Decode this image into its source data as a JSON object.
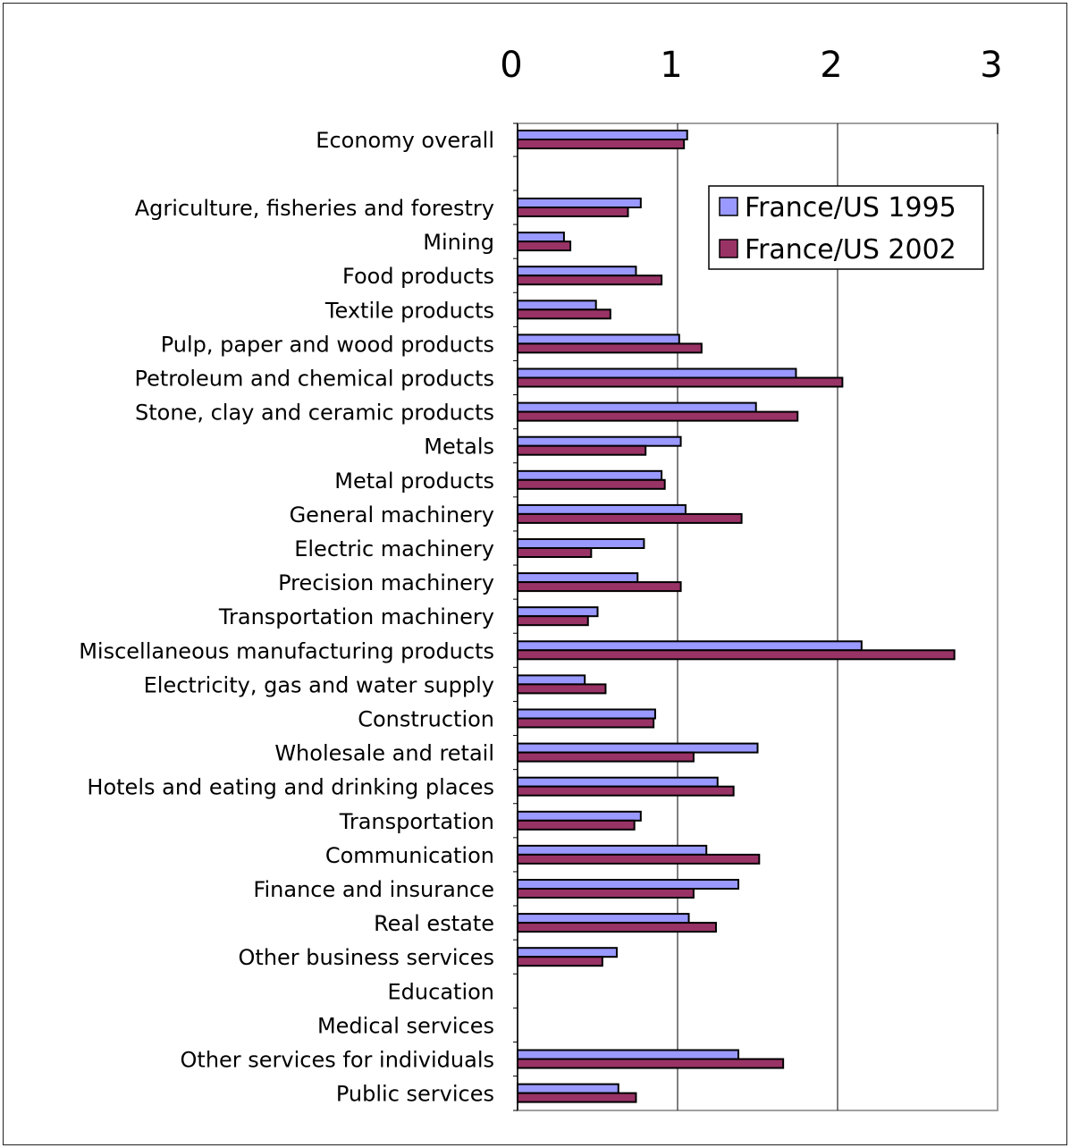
{
  "chart_data": {
    "type": "bar",
    "orientation": "horizontal",
    "categories": [
      "Economy overall",
      "Agriculture, fisheries and forestry",
      "Mining",
      "Food products",
      "Textile products",
      "Pulp, paper and wood products",
      "Petroleum and chemical products",
      "Stone, clay and ceramic products",
      "Metals",
      "Metal products",
      "General machinery",
      "Electric machinery",
      "Precision machinery",
      "Transportation machinery",
      "Miscellaneous manufacturing products",
      "Electricity, gas and water supply",
      "Construction",
      "Wholesale and retail",
      "Hotels and eating and drinking places",
      "Transportation",
      "Communication",
      "Finance and insurance",
      "Real estate",
      "Other business services",
      "Education",
      "Medical services",
      "Other services for individuals",
      "Public services"
    ],
    "series": [
      {
        "name": "France/US 1995",
        "color": "#9999ff",
        "values": [
          1.06,
          0.77,
          0.29,
          0.74,
          0.49,
          1.01,
          1.74,
          1.49,
          1.02,
          0.9,
          1.05,
          0.79,
          0.75,
          0.5,
          2.15,
          0.42,
          0.86,
          1.5,
          1.25,
          0.77,
          1.18,
          1.38,
          1.07,
          0.62,
          null,
          null,
          1.38,
          0.63
        ]
      },
      {
        "name": "France/US 2002",
        "color": "#993366",
        "values": [
          1.04,
          0.69,
          0.33,
          0.9,
          0.58,
          1.15,
          2.03,
          1.75,
          0.8,
          0.92,
          1.4,
          0.46,
          1.02,
          0.44,
          2.73,
          0.55,
          0.85,
          1.1,
          1.35,
          0.73,
          1.51,
          1.1,
          1.24,
          0.53,
          null,
          null,
          1.66,
          0.74
        ]
      }
    ],
    "xlim": [
      0,
      3
    ],
    "xticks": [
      "0",
      "1",
      "2",
      "3"
    ],
    "grid": true,
    "legend_position": "top-right",
    "title": "",
    "xlabel": "",
    "ylabel": ""
  }
}
